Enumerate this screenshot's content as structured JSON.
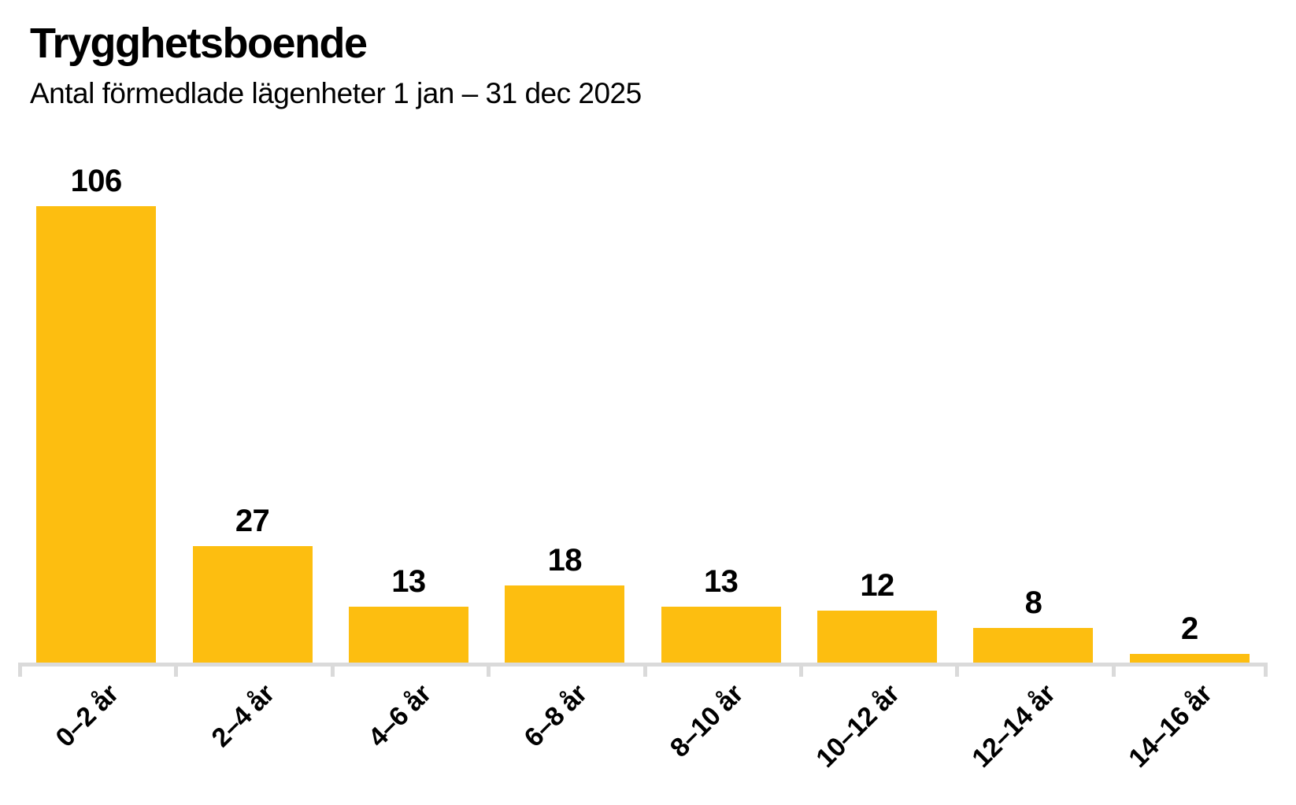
{
  "chart": {
    "title": "Trygghetsboende",
    "subtitle": "Antal förmedlade lägenheter 1 jan – 31 dec 2025"
  },
  "chart_data": {
    "type": "bar",
    "title": "Trygghetsboende",
    "subtitle": "Antal förmedlade lägenheter 1 jan – 31 dec 2025",
    "categories": [
      "0–2 år",
      "2–4 år",
      "4–6 år",
      "6–8 år",
      "8–10 år",
      "10–12 år",
      "12–14 år",
      "14–16 år"
    ],
    "values": [
      106,
      27,
      13,
      18,
      13,
      12,
      8,
      2
    ],
    "value_labels_shown": true,
    "xlabel": "",
    "ylabel": "",
    "ylim": [
      0,
      106
    ],
    "y_axis_shown": false,
    "grid": false,
    "legend": "none",
    "tick_label_rotation_deg": 45,
    "bar_color": "#FDBE10",
    "axis_color": "#DADADA",
    "text_color": "#000000",
    "background_color": "#FFFFFF"
  }
}
